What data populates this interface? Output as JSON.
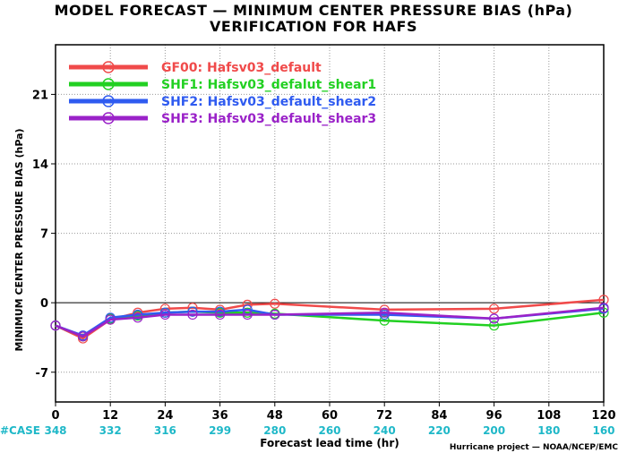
{
  "chart_data": {
    "type": "line",
    "title": "MODEL FORECAST — MINIMUM CENTER PRESSURE BIAS (hPa)",
    "subtitle": "VERIFICATION FOR HAFS",
    "xlabel": "Forecast lead time (hr)",
    "ylabel": "MINIMUM CENTER PRESSURE BIAS (hPa)",
    "x_ticks": [
      0,
      12,
      24,
      36,
      48,
      60,
      72,
      84,
      96,
      108,
      120
    ],
    "y_ticks": [
      -7,
      0,
      7,
      14,
      21
    ],
    "xlim": [
      0,
      120
    ],
    "ylim": [
      -10,
      26
    ],
    "grid": true,
    "legend_position": "top-left",
    "case_label": "#CASE",
    "case_counts": [
      "348",
      "332",
      "316",
      "299",
      "280",
      "260",
      "240",
      "220",
      "200",
      "180",
      "160"
    ],
    "credit": "Hurricane project — NOAA/NCEP/EMC",
    "series": [
      {
        "name": "GF00: Hafsv03_default",
        "color": "#f04a4a",
        "x": [
          0,
          6,
          12,
          18,
          24,
          30,
          36,
          42,
          48,
          72,
          96,
          120
        ],
        "y": [
          -2.3,
          -3.6,
          -1.7,
          -1.0,
          -0.6,
          -0.5,
          -0.7,
          -0.2,
          -0.1,
          -0.7,
          -0.6,
          0.3
        ]
      },
      {
        "name": "SHF1: Hafsv03_defalut_shear1",
        "color": "#22d022",
        "x": [
          0,
          6,
          12,
          18,
          24,
          30,
          36,
          42,
          48,
          72,
          96,
          120
        ],
        "y": [
          -2.3,
          -3.4,
          -1.6,
          -1.3,
          -1.0,
          -0.9,
          -1.0,
          -1.0,
          -1.1,
          -1.8,
          -2.3,
          -1.0
        ]
      },
      {
        "name": "SHF2: Hafsv03_default_shear2",
        "color": "#2f5bf0",
        "x": [
          0,
          6,
          12,
          18,
          24,
          30,
          36,
          42,
          48,
          72,
          96,
          120
        ],
        "y": [
          -2.3,
          -3.3,
          -1.5,
          -1.2,
          -1.0,
          -0.9,
          -0.9,
          -0.7,
          -1.2,
          -1.2,
          -1.6,
          -0.6
        ]
      },
      {
        "name": "SHF3: Hafsv03_default_shear3",
        "color": "#9a22c8",
        "x": [
          0,
          6,
          12,
          18,
          24,
          30,
          36,
          42,
          48,
          72,
          96,
          120
        ],
        "y": [
          -2.3,
          -3.4,
          -1.7,
          -1.5,
          -1.2,
          -1.2,
          -1.2,
          -1.2,
          -1.2,
          -1.0,
          -1.6,
          -0.5
        ]
      }
    ]
  }
}
